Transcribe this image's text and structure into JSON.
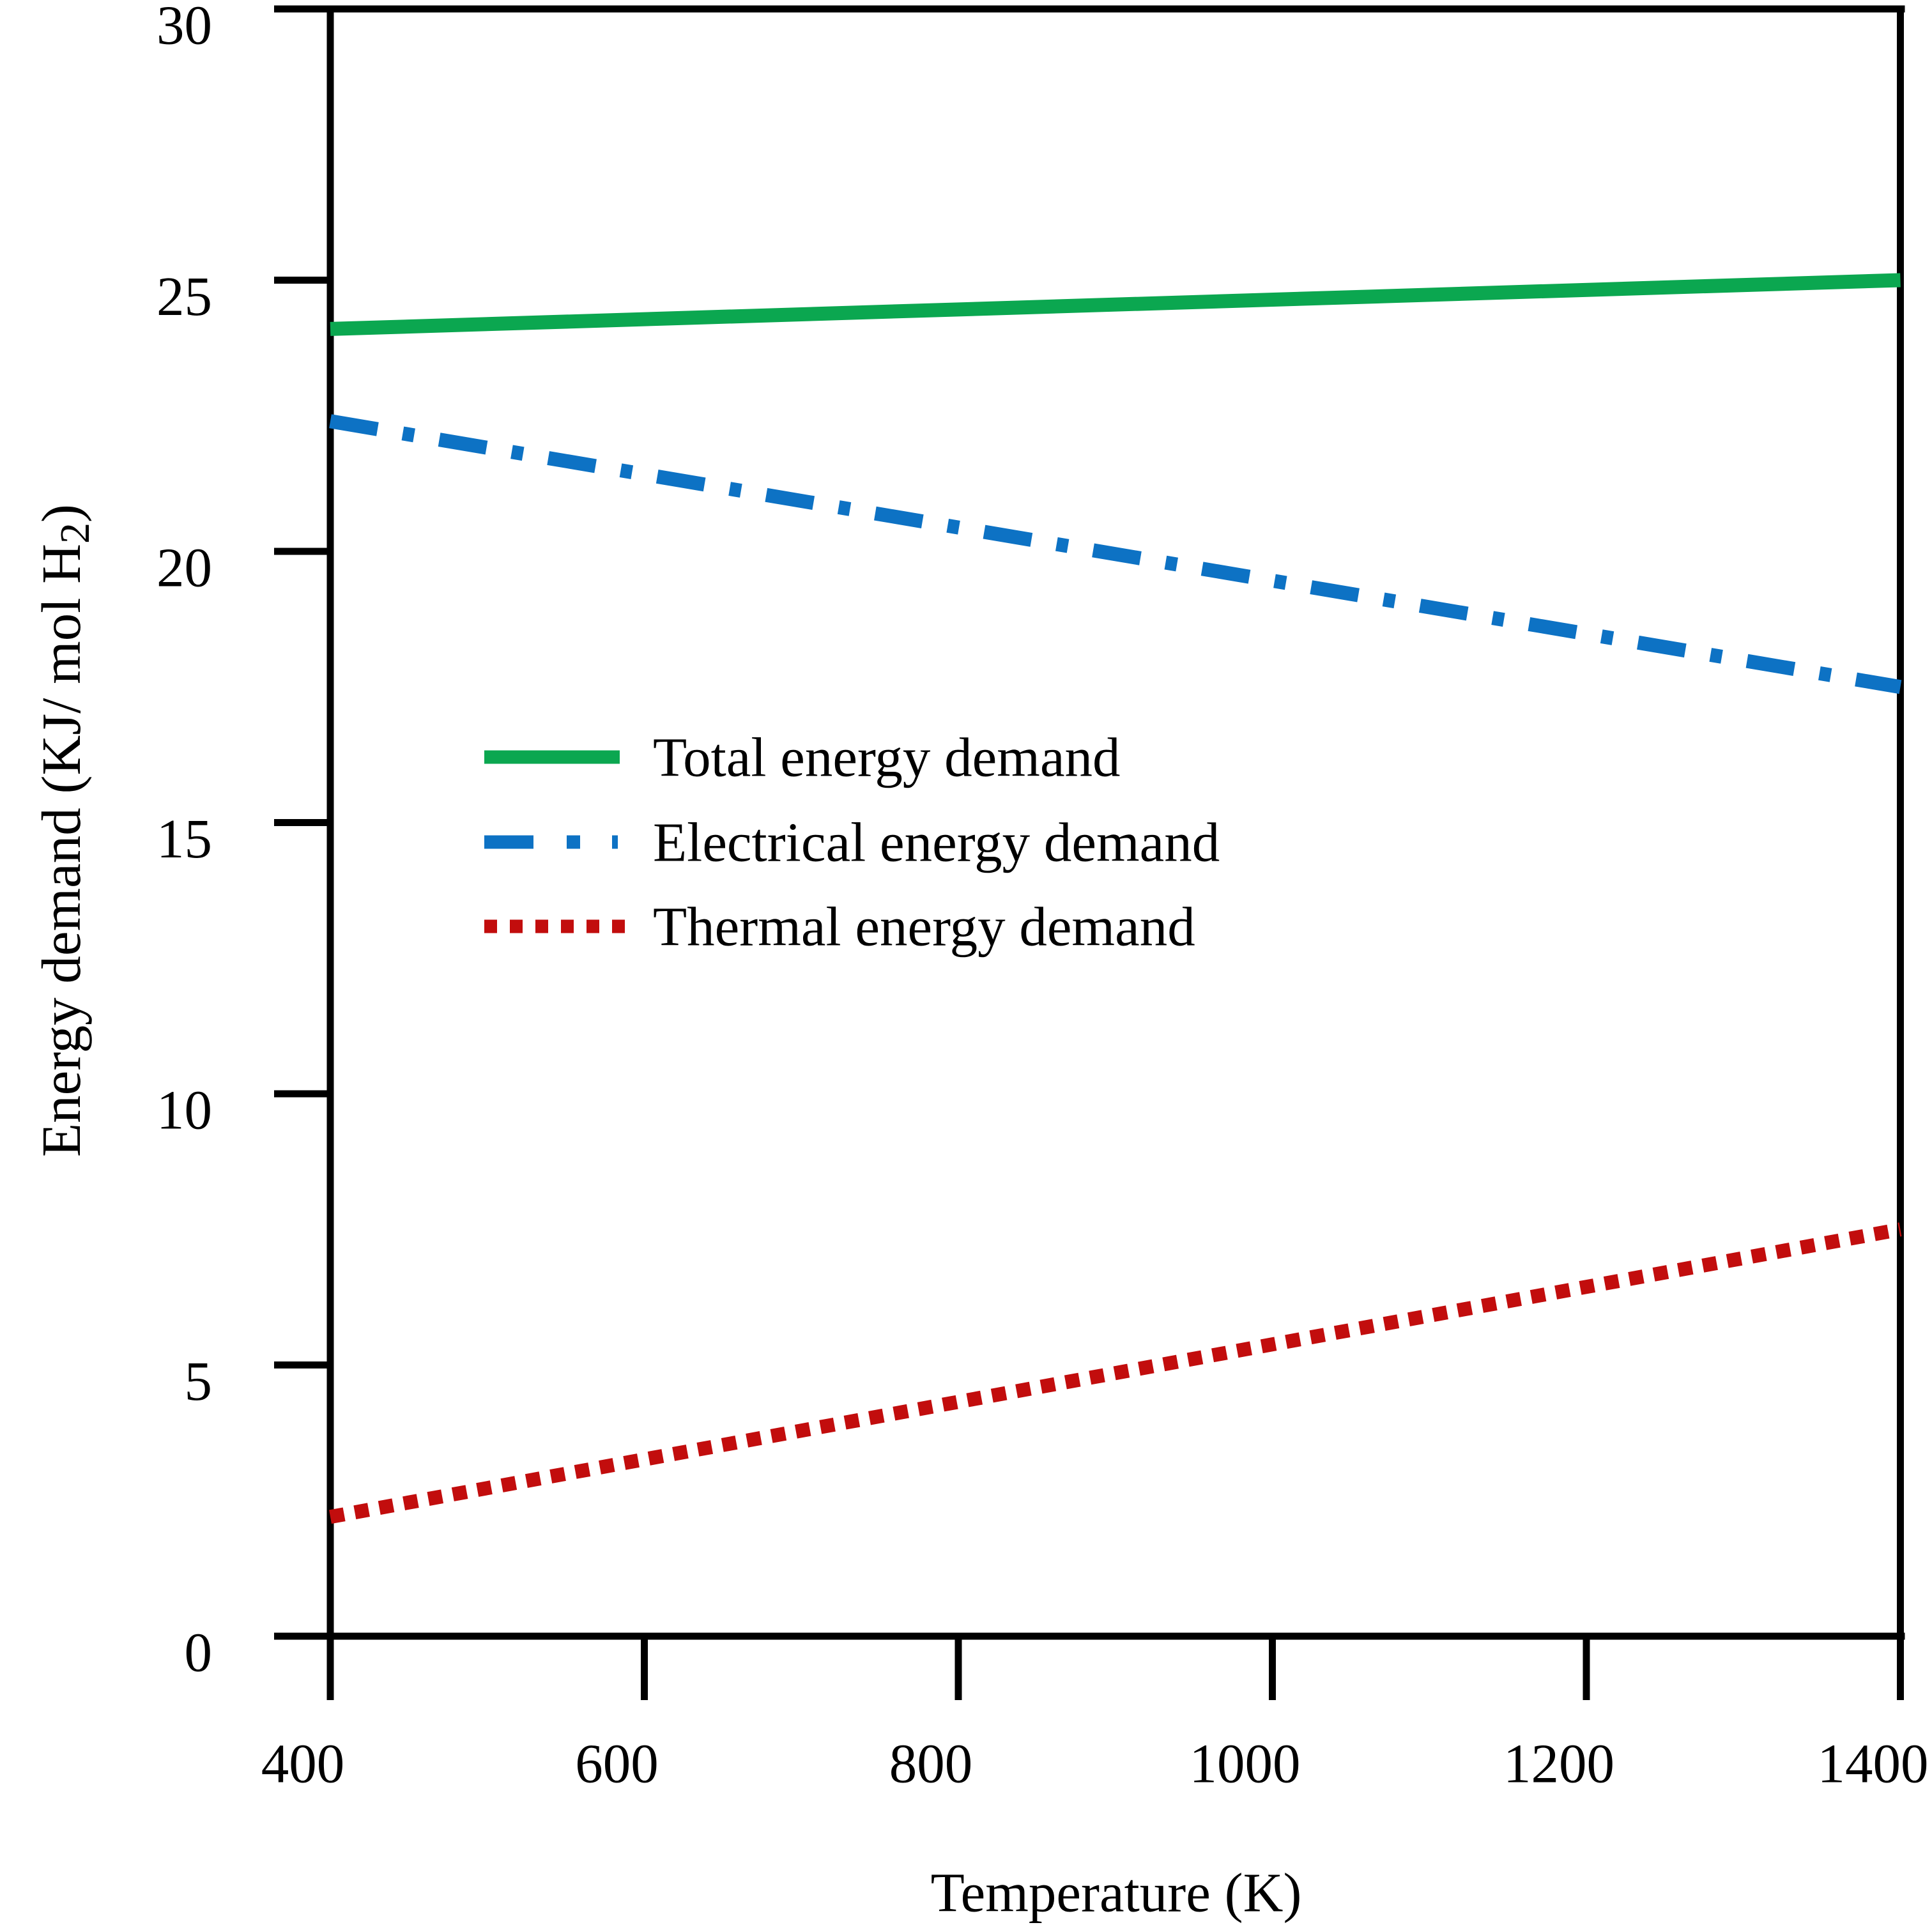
{
  "figure": {
    "background": "#ffffff",
    "axis_color": "#000000",
    "text_color": "#000000"
  },
  "chart_data": {
    "type": "line",
    "title": "",
    "xlabel": "Temperature (K)",
    "ylabel_parts": {
      "pre": "Energy demand (KJ/ mol H",
      "sub": "2",
      "post": ")"
    },
    "xlim": [
      400,
      1400
    ],
    "ylim": [
      0,
      30
    ],
    "x_ticks": [
      400,
      600,
      800,
      1000,
      1200,
      1400
    ],
    "y_ticks": [
      0,
      5,
      10,
      15,
      20,
      25,
      30
    ],
    "grid": false,
    "legend_position": "inside-upper-left",
    "series": [
      {
        "name": "Total energy demand",
        "color": "#0ba750",
        "style": "solid",
        "x": [
          400,
          1400
        ],
        "values": [
          24.1,
          25.0
        ]
      },
      {
        "name": "Electrical energy demand",
        "color": "#0d72c4",
        "style": "dash-dot",
        "x": [
          400,
          1400
        ],
        "values": [
          22.4,
          17.5
        ]
      },
      {
        "name": "Thermal energy demand",
        "color": "#c20d0d",
        "style": "dotted",
        "x": [
          400,
          1400
        ],
        "values": [
          2.2,
          7.5
        ]
      }
    ]
  }
}
